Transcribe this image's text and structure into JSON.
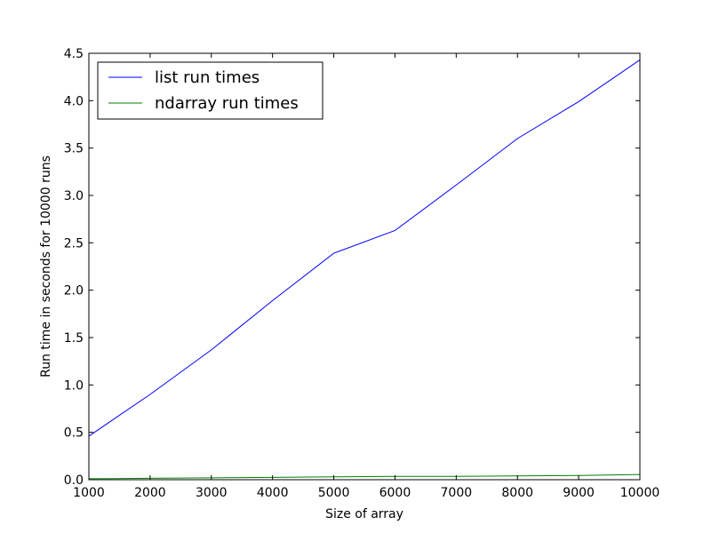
{
  "chart_data": {
    "type": "line",
    "xlabel": "Size of array",
    "ylabel": "Run time in seconds for 10000 runs",
    "xlim": [
      1000,
      10000
    ],
    "ylim": [
      0.0,
      4.5
    ],
    "x_ticks": [
      1000,
      2000,
      3000,
      4000,
      5000,
      6000,
      7000,
      8000,
      9000,
      10000
    ],
    "y_ticks": [
      "0.0",
      "0.5",
      "1.0",
      "1.5",
      "2.0",
      "2.5",
      "3.0",
      "3.5",
      "4.0",
      "4.5"
    ],
    "grid": false,
    "legend_position": "top-left",
    "x": [
      1000,
      2000,
      3000,
      4000,
      5000,
      6000,
      7000,
      8000,
      9000,
      10000
    ],
    "series": [
      {
        "name": "list run times",
        "color": "#0000ff",
        "values": [
          0.46,
          0.9,
          1.37,
          1.89,
          2.39,
          2.63,
          3.11,
          3.6,
          3.99,
          4.43
        ]
      },
      {
        "name": "ndarray run times",
        "color": "#008000",
        "values": [
          0.01,
          0.015,
          0.02,
          0.025,
          0.03,
          0.035,
          0.035,
          0.04,
          0.045,
          0.055
        ]
      }
    ]
  }
}
